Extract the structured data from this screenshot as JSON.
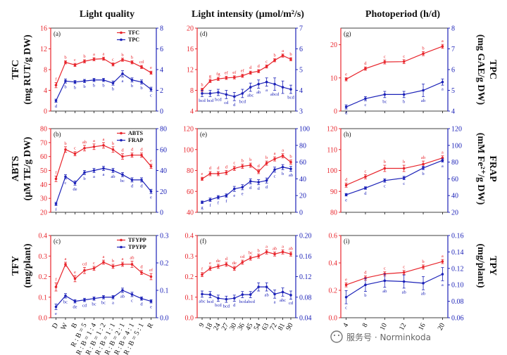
{
  "colors": {
    "red": "#e8252c",
    "blue": "#1c22b8",
    "axis": "#111111"
  },
  "column_titles": [
    "Light quality",
    "Light intensity (μmol/m²/s)",
    "Photoperiod (h/d)"
  ],
  "row_labels": [
    {
      "id": "tfc",
      "side": "left",
      "lines": [
        "TFC",
        "(mg RUT/g DW)"
      ]
    },
    {
      "id": "abts",
      "side": "left",
      "lines": [
        "ABTS",
        "(μM TE/g DW)"
      ]
    },
    {
      "id": "tfy",
      "side": "left",
      "lines": [
        "TFY",
        "(mg/plant)"
      ]
    },
    {
      "id": "tpc",
      "side": "right",
      "lines": [
        "TPC",
        "(mg GAE/g DW)"
      ]
    },
    {
      "id": "frap",
      "side": "right",
      "lines": [
        "FRAP",
        "(mM Fe²⁺/g DW)"
      ]
    },
    {
      "id": "tpy",
      "side": "right",
      "lines": [
        "TPY",
        "(mg/plant)"
      ]
    }
  ],
  "x_groups": {
    "quality": [
      "D",
      "W",
      "B",
      "R : B = 5",
      "R : B = 1 : 4",
      "R : B = 1 : 2",
      "R : B = 1 : 1",
      "R : B = 2 : 1",
      "R : B = 4 : 1",
      "R : B = 5 : 1",
      "R"
    ],
    "intensity": [
      "9",
      "18",
      "24",
      "27",
      "30",
      "36",
      "45",
      "54",
      "63",
      "72",
      "81",
      "90"
    ],
    "photoperiod": [
      "4",
      "8",
      "10",
      "12",
      "16",
      "20"
    ]
  },
  "watermark": "服务号 · Norminkoda",
  "chart_data": [
    {
      "id": "a",
      "panel": "(a)",
      "type": "line",
      "xgroup": "quality",
      "legend": [
        "TFC",
        "TPC"
      ],
      "left_axis": {
        "ylim": [
          0,
          16
        ],
        "ticks": [
          0,
          4,
          8,
          12,
          16
        ]
      },
      "right_axis": {
        "ylim": [
          0,
          8
        ],
        "ticks": [
          0,
          2,
          4,
          6,
          8
        ]
      },
      "series": [
        {
          "name": "TFC",
          "axis": "left",
          "color": "red",
          "values": [
            5.0,
            9.4,
            8.9,
            9.6,
            10.0,
            10.1,
            9.0,
            9.9,
            9.4,
            8.5,
            7.4
          ],
          "errors": [
            0.5,
            0.3,
            0.3,
            0.3,
            0.3,
            0.3,
            0.3,
            0.3,
            0.3,
            0.3,
            0.3
          ],
          "letters": [
            "f",
            "b",
            "c",
            "b",
            "a",
            "a",
            "c",
            "b",
            "b",
            "cd",
            "e"
          ]
        },
        {
          "name": "TPC",
          "axis": "right",
          "color": "blue",
          "values": [
            1.0,
            2.9,
            2.8,
            2.9,
            3.0,
            3.0,
            2.7,
            3.6,
            3.0,
            2.8,
            2.1
          ],
          "errors": [
            0.15,
            0.2,
            0.15,
            0.15,
            0.15,
            0.15,
            0.2,
            0.3,
            0.2,
            0.2,
            0.2
          ],
          "letters": [
            "d",
            "b",
            "b",
            "b",
            "b",
            "b",
            "b",
            "a",
            "b",
            "b",
            "c"
          ]
        }
      ]
    },
    {
      "id": "b",
      "panel": "(b)",
      "type": "line",
      "xgroup": "quality",
      "legend": [
        "ABTS",
        "FRAP"
      ],
      "left_axis": {
        "ylim": [
          20,
          80
        ],
        "ticks": [
          20,
          30,
          40,
          50,
          60,
          70,
          80
        ]
      },
      "right_axis": {
        "ylim": [
          0,
          80
        ],
        "ticks": [
          0,
          20,
          40,
          60,
          80
        ]
      },
      "series": [
        {
          "name": "ABTS",
          "axis": "left",
          "color": "red",
          "values": [
            44,
            65,
            62,
            66,
            67,
            68,
            65,
            60,
            61,
            61,
            53
          ],
          "errors": [
            2,
            2,
            1.5,
            2,
            2,
            2,
            2,
            2,
            1.5,
            1.5,
            1.5
          ],
          "letters": [
            "f",
            "b",
            "c",
            "ab",
            "a",
            "a",
            "b",
            "d",
            "d",
            "d",
            "e"
          ]
        },
        {
          "name": "FRAP",
          "axis": "right",
          "color": "blue",
          "values": [
            8,
            34,
            28,
            38,
            40,
            42,
            40,
            36,
            31,
            31,
            20
          ],
          "errors": [
            1.5,
            2,
            2,
            2,
            2,
            2,
            2,
            2,
            2,
            2,
            2
          ],
          "letters": [
            "f",
            "c",
            "de",
            "b",
            "a",
            "a",
            "ab",
            "bc",
            "d",
            "d",
            "e"
          ]
        }
      ]
    },
    {
      "id": "c",
      "panel": "(c)",
      "type": "line",
      "xgroup": "quality",
      "legend": [
        "TFYPP",
        "TPYPP"
      ],
      "left_axis": {
        "ylim": [
          0,
          0.4
        ],
        "ticks": [
          0.0,
          0.1,
          0.2,
          0.3,
          0.4
        ]
      },
      "right_axis": {
        "ylim": [
          0,
          0.3
        ],
        "ticks": [
          0.0,
          0.1,
          0.2,
          0.3
        ]
      },
      "series": [
        {
          "name": "TFYPP",
          "axis": "left",
          "color": "red",
          "values": [
            0.15,
            0.26,
            0.19,
            0.23,
            0.24,
            0.27,
            0.25,
            0.26,
            0.26,
            0.22,
            0.2
          ],
          "errors": [
            0.02,
            0.01,
            0.015,
            0.015,
            0.01,
            0.01,
            0.01,
            0.01,
            0.015,
            0.01,
            0.015
          ],
          "letters": [
            "f",
            "a",
            "e",
            "cd",
            "c",
            "a",
            "b",
            "a",
            "ab",
            "d",
            "ef"
          ]
        },
        {
          "name": "TPYPP",
          "axis": "right",
          "color": "blue",
          "values": [
            0.04,
            0.08,
            0.06,
            0.065,
            0.07,
            0.075,
            0.075,
            0.1,
            0.085,
            0.07,
            0.06
          ],
          "errors": [
            0.01,
            0.008,
            0.006,
            0.006,
            0.006,
            0.006,
            0.006,
            0.008,
            0.008,
            0.006,
            0.006
          ],
          "letters": [
            "e",
            "bc",
            "de",
            "cd",
            "bc",
            "bc",
            "a",
            "ab",
            "c",
            "d",
            "e"
          ]
        }
      ]
    },
    {
      "id": "d",
      "panel": "(d)",
      "type": "line",
      "xgroup": "intensity",
      "legend": [],
      "left_axis": {
        "ylim": [
          4,
          20
        ],
        "ticks": [
          4,
          8,
          12,
          16,
          20
        ]
      },
      "right_axis": {
        "ylim": [
          3,
          7
        ],
        "ticks": [
          3,
          4,
          5,
          6,
          7
        ]
      },
      "series": [
        {
          "name": "TFC",
          "axis": "left",
          "color": "red",
          "values": [
            8.1,
            9.8,
            10.2,
            10.4,
            10.5,
            10.8,
            11.4,
            11.7,
            12.6,
            13.8,
            14.7,
            14.0
          ],
          "errors": [
            0.3,
            0.3,
            0.3,
            0.3,
            0.3,
            0.3,
            0.3,
            0.3,
            0.3,
            0.3,
            0.3,
            0.3
          ],
          "letters": [
            "h",
            "g",
            "fg",
            "ef",
            "ef",
            "ef",
            "d",
            "d",
            "c",
            "b",
            "a",
            "b"
          ]
        },
        {
          "name": "TPC",
          "axis": "right",
          "color": "blue",
          "values": [
            3.85,
            3.85,
            3.9,
            3.8,
            3.7,
            3.85,
            4.15,
            4.3,
            4.4,
            4.3,
            4.15,
            4.05
          ],
          "errors": [
            0.15,
            0.15,
            0.15,
            0.2,
            0.2,
            0.2,
            0.2,
            0.2,
            0.2,
            0.3,
            0.3,
            0.2
          ],
          "letters": [
            "bcd",
            "bcd",
            "bcd",
            "cd",
            "d",
            "bcd",
            "abc",
            "ab",
            "a",
            "abcd",
            "",
            "bcd"
          ]
        }
      ]
    },
    {
      "id": "e",
      "panel": "(e)",
      "type": "line",
      "xgroup": "intensity",
      "legend": [],
      "left_axis": {
        "ylim": [
          40,
          120
        ],
        "ticks": [
          40,
          60,
          80,
          100,
          120
        ]
      },
      "right_axis": {
        "ylim": [
          0,
          100
        ],
        "ticks": [
          0,
          20,
          40,
          60,
          80,
          100
        ]
      },
      "series": [
        {
          "name": "ABTS",
          "axis": "left",
          "color": "red",
          "values": [
            72,
            77,
            77,
            78,
            82,
            84,
            85,
            79,
            87,
            91,
            94,
            88
          ],
          "errors": [
            1.5,
            2,
            2,
            2,
            2,
            2,
            2,
            2,
            2,
            2,
            2,
            2
          ],
          "letters": [
            "e",
            "d",
            "d",
            "d",
            "c",
            "b",
            "b",
            "d",
            "b",
            "a",
            "a",
            "b"
          ]
        },
        {
          "name": "FRAP",
          "axis": "right",
          "color": "blue",
          "values": [
            12,
            15,
            18,
            20,
            28,
            30,
            37,
            36,
            38,
            51,
            54,
            52
          ],
          "errors": [
            1.5,
            2,
            2,
            2,
            3,
            3,
            3,
            3,
            3,
            3,
            3,
            3
          ],
          "letters": [
            "g",
            "f",
            "f",
            "f",
            "e",
            "e",
            "d",
            "d",
            "d",
            "c",
            "b",
            "ab"
          ]
        }
      ]
    },
    {
      "id": "f",
      "panel": "(f)",
      "type": "line",
      "xgroup": "intensity",
      "legend": [],
      "left_axis": {
        "ylim": [
          0,
          0.4
        ],
        "ticks": [
          0.0,
          0.1,
          0.2,
          0.3,
          0.4
        ]
      },
      "right_axis": {
        "ylim": [
          0.04,
          0.2
        ],
        "ticks": [
          0.04,
          0.08,
          0.12,
          0.16,
          0.2
        ]
      },
      "series": [
        {
          "name": "TFYPP",
          "axis": "left",
          "color": "red",
          "values": [
            0.21,
            0.24,
            0.25,
            0.26,
            0.24,
            0.27,
            0.29,
            0.3,
            0.32,
            0.31,
            0.32,
            0.31
          ],
          "errors": [
            0.01,
            0.01,
            0.01,
            0.01,
            0.01,
            0.01,
            0.01,
            0.01,
            0.01,
            0.01,
            0.01,
            0.01
          ],
          "letters": [
            "f",
            "e",
            "de",
            "d",
            "de",
            "cd",
            "bc",
            "b",
            "a",
            "ab",
            "a",
            "ab"
          ]
        },
        {
          "name": "TPYPP",
          "axis": "right",
          "color": "blue",
          "values": [
            0.086,
            0.085,
            0.078,
            0.076,
            0.078,
            0.085,
            0.085,
            0.1,
            0.1,
            0.086,
            0.09,
            0.084
          ],
          "errors": [
            0.006,
            0.006,
            0.006,
            0.006,
            0.006,
            0.006,
            0.006,
            0.008,
            0.008,
            0.008,
            0.008,
            0.008
          ],
          "letters": [
            "abc",
            "bcd",
            "bcd",
            "bcd",
            "d",
            "bcd",
            "abcd",
            "",
            "ab",
            "a",
            "abc",
            "cd"
          ]
        }
      ]
    },
    {
      "id": "g",
      "panel": "(g)",
      "type": "line",
      "xgroup": "photoperiod",
      "legend": [],
      "left_axis": {
        "ylim": [
          0,
          25
        ],
        "ticks": [
          0,
          10,
          20
        ]
      },
      "right_axis": {
        "ylim": [
          4,
          8
        ],
        "ticks": [
          4,
          5,
          6,
          7,
          8
        ]
      },
      "series": [
        {
          "name": "TFC",
          "axis": "left",
          "color": "red",
          "values": [
            9.6,
            12.8,
            14.8,
            14.9,
            17.3,
            19.5
          ],
          "errors": [
            0.5,
            0.5,
            0.6,
            0.6,
            0.6,
            0.6
          ],
          "letters": [
            "e",
            "d",
            "c",
            "c",
            "b",
            "a"
          ]
        },
        {
          "name": "TPC",
          "axis": "right",
          "color": "blue",
          "values": [
            4.2,
            4.6,
            4.8,
            4.8,
            5.0,
            5.4
          ],
          "errors": [
            0.1,
            0.1,
            0.15,
            0.15,
            0.3,
            0.15
          ],
          "letters": [
            "d",
            "c",
            "bc",
            "b",
            "ab",
            "a"
          ]
        }
      ]
    },
    {
      "id": "h",
      "panel": "(h)",
      "type": "line",
      "xgroup": "photoperiod",
      "legend": [],
      "left_axis": {
        "ylim": [
          80,
          120
        ],
        "ticks": [
          80,
          90,
          100,
          110,
          120
        ]
      },
      "right_axis": {
        "ylim": [
          20,
          120
        ],
        "ticks": [
          20,
          40,
          60,
          80,
          100,
          120
        ]
      },
      "series": [
        {
          "name": "ABTS",
          "axis": "left",
          "color": "red",
          "values": [
            93,
            97,
            101,
            101,
            103,
            106
          ],
          "errors": [
            1.0,
            1.0,
            1.5,
            1.5,
            1.5,
            1.0
          ],
          "letters": [
            "d",
            "c",
            "b",
            "b",
            "ab",
            "a"
          ]
        },
        {
          "name": "FRAP",
          "axis": "right",
          "color": "blue",
          "values": [
            41,
            49,
            58,
            61,
            73,
            82
          ],
          "errors": [
            1.5,
            1.5,
            2,
            2,
            2,
            2
          ],
          "letters": [
            "e",
            "d",
            "c",
            "c",
            "b",
            "a"
          ]
        }
      ]
    },
    {
      "id": "i",
      "panel": "(i)",
      "type": "line",
      "xgroup": "photoperiod",
      "legend": [],
      "left_axis": {
        "ylim": [
          0,
          0.6
        ],
        "ticks": [
          0.0,
          0.2,
          0.4,
          0.6
        ]
      },
      "right_axis": {
        "ylim": [
          0.06,
          0.16
        ],
        "ticks": [
          0.06,
          0.08,
          0.1,
          0.12,
          0.14,
          0.16
        ]
      },
      "series": [
        {
          "name": "TFYPP",
          "axis": "left",
          "color": "red",
          "values": [
            0.24,
            0.29,
            0.32,
            0.33,
            0.37,
            0.41
          ],
          "errors": [
            0.015,
            0.015,
            0.015,
            0.015,
            0.015,
            0.015
          ],
          "letters": [
            "e",
            "d",
            "c",
            "c",
            "b",
            "a"
          ]
        },
        {
          "name": "TPYPP",
          "axis": "right",
          "color": "blue",
          "values": [
            0.085,
            0.1,
            0.105,
            0.104,
            0.102,
            0.113
          ],
          "errors": [
            0.008,
            0.008,
            0.008,
            0.008,
            0.008,
            0.008
          ],
          "letters": [
            "c",
            "b",
            "ab",
            "ab",
            "ab",
            "a"
          ]
        }
      ]
    }
  ]
}
